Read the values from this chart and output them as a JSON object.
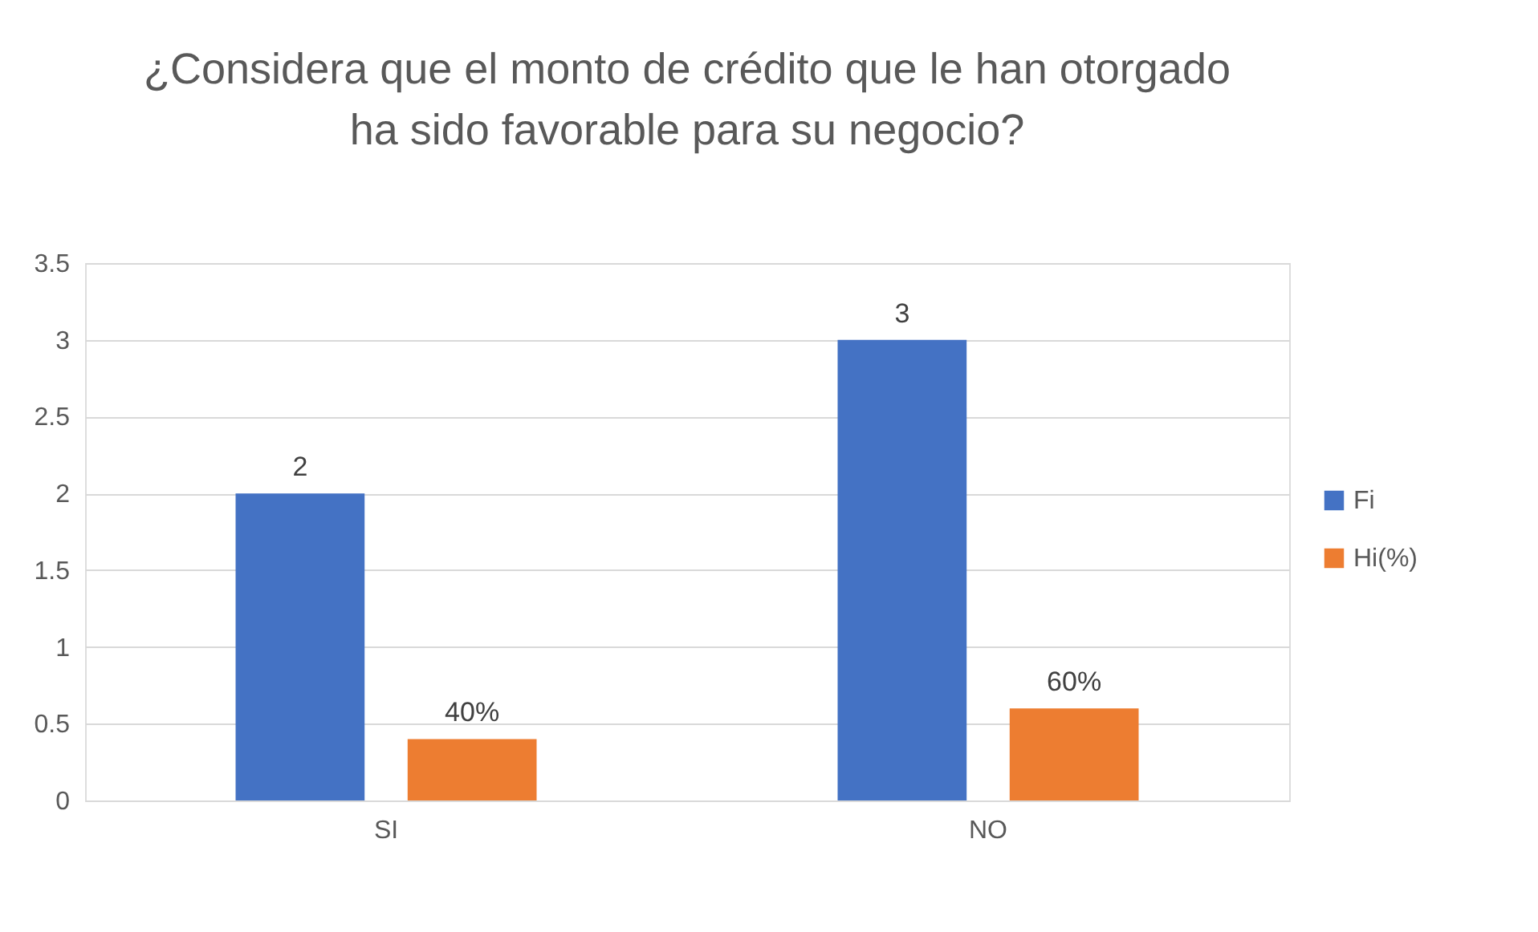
{
  "chart_data": {
    "type": "bar",
    "title": "¿Considera que el monto de crédito que le han otorgado ha sido favorable para su negocio?",
    "categories": [
      "SI",
      "NO"
    ],
    "series": [
      {
        "name": "Fi",
        "color": "#4472c4",
        "values": [
          2,
          3
        ],
        "value_labels": [
          "2",
          "3"
        ]
      },
      {
        "name": "Hi(%)",
        "color": "#ed7d31",
        "values": [
          0.4,
          0.6
        ],
        "value_labels": [
          "40%",
          "60%"
        ]
      }
    ],
    "ylim": [
      0,
      3.5
    ],
    "yticks": [
      {
        "value": 0,
        "label": "0"
      },
      0.5,
      {
        "value": 1,
        "label": "1"
      },
      1.5,
      {
        "value": 2,
        "label": "2"
      },
      2.5,
      {
        "value": 3,
        "label": "3"
      },
      3.5
    ],
    "grid": "y",
    "legend": "right"
  }
}
